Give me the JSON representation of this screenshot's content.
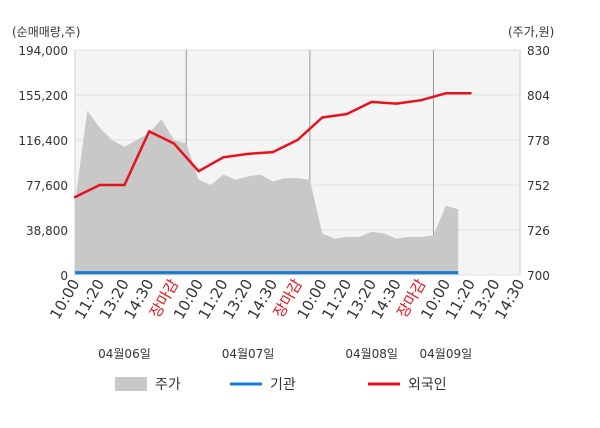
{
  "chart_data": {
    "type": "line",
    "left_axis_title": "(순매매량,주)",
    "right_axis_title": "(주가,원)",
    "left_ticks": [
      "194,000",
      "155,200",
      "116,400",
      "77,600",
      "38,800",
      "0"
    ],
    "left_tick_values": [
      194000,
      155200,
      116400,
      77600,
      38800,
      0
    ],
    "right_ticks": [
      "830",
      "804",
      "778",
      "752",
      "726",
      "700"
    ],
    "right_tick_values": [
      830,
      804,
      778,
      752,
      726,
      700
    ],
    "left_ylim": [
      0,
      194000
    ],
    "right_ylim": [
      700,
      830
    ],
    "x_tick_labels": [
      "10:00",
      "11:20",
      "13:20",
      "14:30",
      "장마감",
      "10:00",
      "11:20",
      "13:20",
      "14:30",
      "장마감",
      "10:00",
      "11:20",
      "13:20",
      "14:30",
      "장마감",
      "10:00",
      "11:20",
      "13:20",
      "14:30"
    ],
    "x_tick_colors": [
      "#333333",
      "#333333",
      "#333333",
      "#333333",
      "#e8121c",
      "#333333",
      "#333333",
      "#333333",
      "#333333",
      "#e8121c",
      "#333333",
      "#333333",
      "#333333",
      "#333333",
      "#e8121c",
      "#333333",
      "#333333",
      "#333333",
      "#333333"
    ],
    "day_labels": [
      {
        "label": "04월06일",
        "index": 2
      },
      {
        "label": "04월07일",
        "index": 7
      },
      {
        "label": "04월08일",
        "index": 12
      },
      {
        "label": "04월09일",
        "index": 15
      }
    ],
    "day_dividers": [
      4.5,
      9.5,
      14.5
    ],
    "grid": true,
    "legend_position": "bottom",
    "series": [
      {
        "name": "주가",
        "kind": "area",
        "axis": "right",
        "color": "#c8c8c8",
        "x": [
          0,
          0.5,
          1,
          1.5,
          2,
          2.5,
          3,
          3.5,
          4,
          4.5,
          5,
          5.5,
          6,
          6.5,
          7,
          7.5,
          8,
          8.5,
          9,
          9.5,
          10,
          10.5,
          11,
          11.5,
          12,
          12.5,
          13,
          13.5,
          14,
          14.5,
          15,
          15.5
        ],
        "values": [
          742,
          795,
          785,
          778,
          774,
          778,
          782,
          790,
          778,
          776,
          755,
          752,
          758,
          755,
          757,
          758,
          754,
          756,
          756,
          755,
          724,
          721,
          722,
          722,
          725,
          724,
          721,
          722,
          722,
          723,
          740,
          738
        ]
      },
      {
        "name": "기관",
        "kind": "line",
        "axis": "left",
        "color": "#1a7ccf",
        "x": [
          0,
          15.5
        ],
        "values": [
          2000,
          2000
        ]
      },
      {
        "name": "외국인",
        "kind": "line",
        "axis": "right",
        "color": "#e8121c",
        "x": [
          0,
          1,
          2,
          3,
          4,
          5,
          6,
          7,
          8,
          9,
          10,
          11,
          12,
          13,
          14,
          15,
          16
        ],
        "values": [
          745,
          752,
          752,
          783,
          776,
          760,
          768,
          770,
          771,
          778,
          791,
          793,
          800,
          799,
          801,
          805,
          805
        ]
      }
    ]
  }
}
